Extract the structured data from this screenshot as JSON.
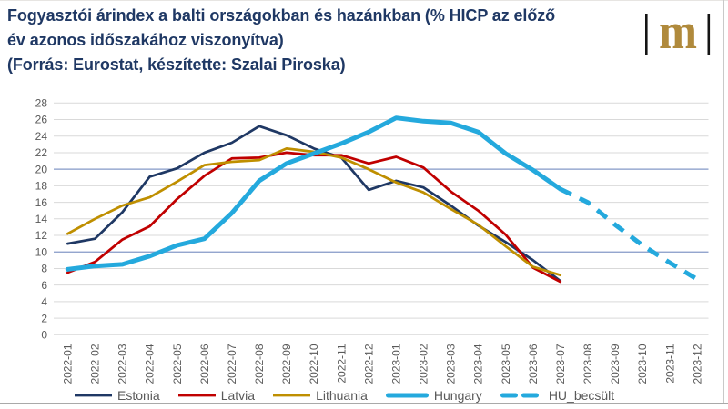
{
  "header": {
    "title_line1": "Fogyasztói árindex a balti országokban és hazánkban (% HICP az előző",
    "title_line2": "év azonos időszakához viszonyítva)",
    "title_line3": "(Forrás: Eurostat, készítette: Szalai Piroska)",
    "title_color": "#1f3864"
  },
  "logo": {
    "letter": "m",
    "letter_color": "#b08a3c",
    "bar_color": "#141414"
  },
  "chart_data": {
    "type": "line",
    "title": "Fogyasztói árindex a balti országokban és hazánkban (% HICP az előző év azonos időszakához viszonyítva)",
    "source_note": "(Forrás: Eurostat, készítette: Szalai Piroska)",
    "categories": [
      "2022-01",
      "2022-02",
      "2022-03",
      "2022-04",
      "2022-05",
      "2022-06",
      "2022-07",
      "2022-08",
      "2022-09",
      "2022-10",
      "2022-11",
      "2022-12",
      "2023-01",
      "2023-02",
      "2023-03",
      "2023-04",
      "2023-05",
      "2023-06",
      "2023-07",
      "2023-08",
      "2023-09",
      "2023-10",
      "2023-11",
      "2023-12"
    ],
    "series": [
      {
        "name": "Estonia",
        "color": "#1f3864",
        "style": "solid",
        "width": 2.75,
        "values": [
          11.0,
          11.6,
          14.8,
          19.1,
          20.1,
          22.0,
          23.2,
          25.2,
          24.1,
          22.5,
          21.4,
          17.5,
          18.6,
          17.8,
          15.6,
          13.2,
          11.2,
          9.0,
          6.5,
          null,
          null,
          null,
          null,
          null
        ]
      },
      {
        "name": "Latvia",
        "color": "#c00000",
        "style": "solid",
        "width": 2.75,
        "values": [
          7.5,
          8.8,
          11.5,
          13.1,
          16.4,
          19.2,
          21.3,
          21.4,
          22.0,
          21.7,
          21.7,
          20.7,
          21.5,
          20.2,
          17.3,
          15.0,
          12.1,
          8.1,
          6.4,
          null,
          null,
          null,
          null,
          null
        ]
      },
      {
        "name": "Lithuania",
        "color": "#bf8f00",
        "style": "solid",
        "width": 2.75,
        "values": [
          12.2,
          14.0,
          15.6,
          16.6,
          18.5,
          20.5,
          20.9,
          21.1,
          22.5,
          22.1,
          21.4,
          20.0,
          18.4,
          17.2,
          15.2,
          13.3,
          10.7,
          8.2,
          7.2,
          null,
          null,
          null,
          null,
          null
        ]
      },
      {
        "name": "Hungary",
        "color": "#24a9dd",
        "style": "solid",
        "width": 5,
        "values": [
          7.9,
          8.3,
          8.5,
          9.5,
          10.8,
          11.6,
          14.7,
          18.6,
          20.7,
          21.9,
          23.1,
          24.5,
          26.2,
          25.8,
          25.6,
          24.5,
          21.9,
          19.9,
          17.6,
          null,
          null,
          null,
          null,
          null
        ]
      },
      {
        "name": "HU_becsült",
        "color": "#24a9dd",
        "style": "dashed",
        "width": 5,
        "values": [
          null,
          null,
          null,
          null,
          null,
          null,
          null,
          null,
          null,
          null,
          null,
          null,
          null,
          null,
          null,
          null,
          null,
          null,
          17.6,
          16.0,
          13.3,
          10.8,
          8.7,
          6.7
        ]
      }
    ],
    "ylim": [
      0,
      28
    ],
    "ytick_step": 2,
    "grid_color": "#d9d9d9",
    "highlight_gridlines": {
      "values": [
        10,
        20
      ],
      "color": "#8499c7"
    },
    "tick_label_color": "#595959",
    "legend_position": "bottom"
  }
}
